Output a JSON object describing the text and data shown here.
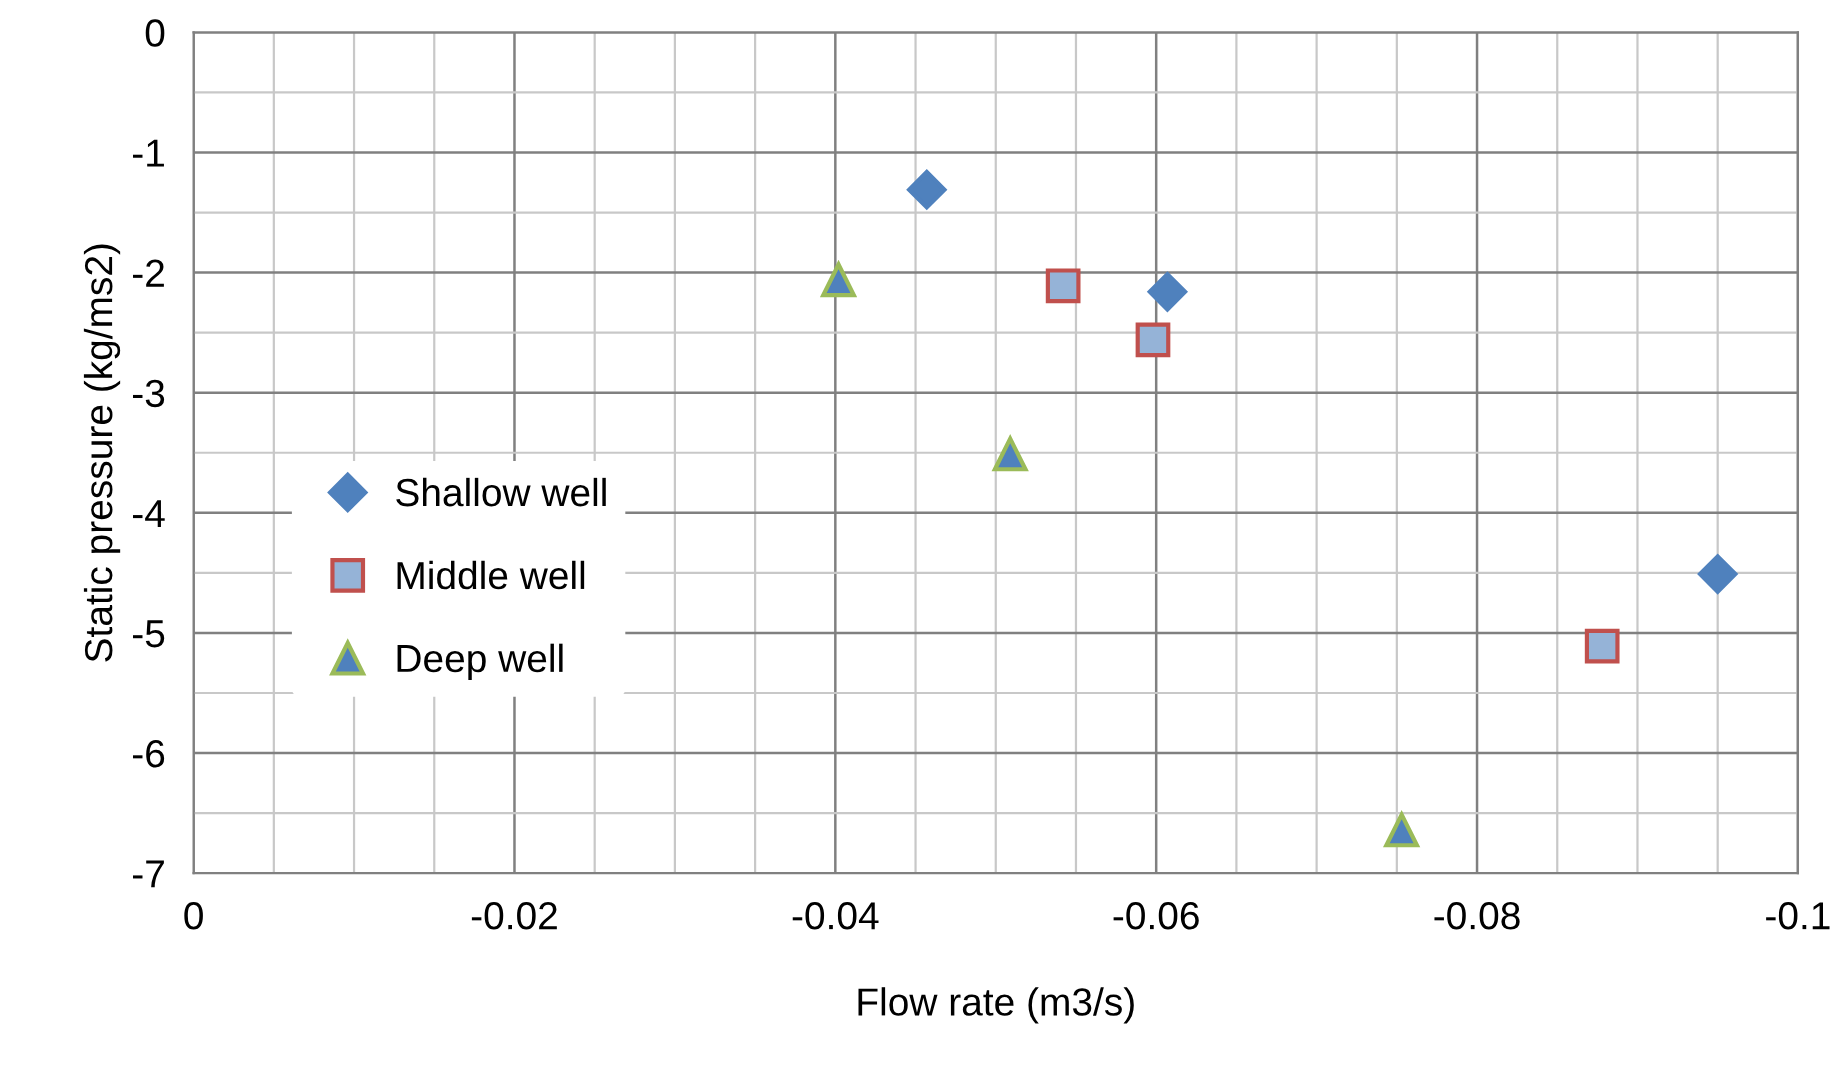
{
  "chart_data": {
    "type": "scatter",
    "xlabel": "Flow rate (m3/s)",
    "ylabel": "Static pressure (kg/ms2)",
    "xlim": [
      0,
      -0.1
    ],
    "xticks": [
      0,
      -0.02,
      -0.04,
      -0.06,
      -0.08,
      -0.1
    ],
    "ylim": [
      -7,
      0
    ],
    "yticks": [
      -7,
      -6,
      -5,
      -4,
      -3,
      -2,
      -1,
      0
    ],
    "grid": true,
    "legend": "left",
    "series": [
      {
        "name": "Shallow well",
        "color": "#4f81bd",
        "marker": "diamond",
        "x": [
          -0.0457,
          -0.0607,
          -0.095
        ],
        "values": [
          -1.31,
          -2.16,
          -4.51
        ]
      },
      {
        "name": "Middle well",
        "color": "#95b3d7",
        "marker": "square",
        "x": [
          -0.0542,
          -0.0598,
          -0.0878
        ],
        "values": [
          -2.11,
          -2.56,
          -5.11
        ]
      },
      {
        "name": "Deep well",
        "color": "#4f81bd",
        "marker": "triangle",
        "x": [
          -0.0402,
          -0.0509,
          -0.0753
        ],
        "values": [
          -2.06,
          -3.51,
          -6.64
        ]
      }
    ]
  }
}
